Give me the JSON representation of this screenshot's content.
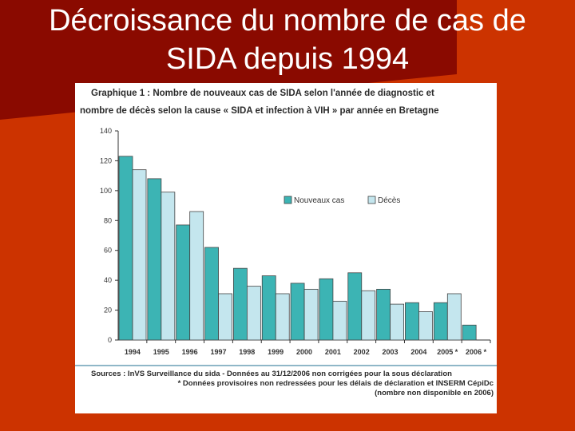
{
  "slide": {
    "title_line1": "Décroissance du nombre de cas de",
    "title_line2": "SIDA depuis 1994"
  },
  "colors": {
    "background": "#cc3300",
    "nouveaux_cas": "#3cb4b4",
    "deces": "#c4e6ee"
  },
  "chart_data": {
    "type": "bar",
    "title": "Graphique 1 : Nombre de nouveaux cas de SIDA selon l'année de diagnostic et nombre de décès selon la cause « SIDA et infection à VIH » par année en Bretagne",
    "title_line1": "Graphique 1 : Nombre de nouveaux cas de SIDA selon l'année de diagnostic et",
    "title_line2": "nombre de décès selon la cause « SIDA et infection à VIH » par année en Bretagne",
    "categories": [
      "1994",
      "1995",
      "1996",
      "1997",
      "1998",
      "1999",
      "2000",
      "2001",
      "2002",
      "2003",
      "2004",
      "2005 *",
      "2006 *"
    ],
    "series": [
      {
        "name": "Nouveaux cas",
        "values": [
          123,
          108,
          77,
          62,
          48,
          43,
          38,
          41,
          45,
          34,
          25,
          25,
          10
        ]
      },
      {
        "name": "Décès",
        "values": [
          114,
          99,
          86,
          31,
          36,
          31,
          34,
          26,
          33,
          24,
          19,
          31,
          null
        ]
      }
    ],
    "ylim": [
      0,
      140
    ],
    "yticks": [
      0,
      20,
      40,
      60,
      80,
      100,
      120,
      140
    ],
    "grid": false,
    "legend": "inside-center-right",
    "source_lines": [
      "Sources : InVS Surveillance du sida - Données au 31/12/2006 non corrigées pour la sous déclaration",
      "* Données provisoires non redressées pour les délais de déclaration et INSERM CépiDc",
      "(nombre non disponible en 2006)"
    ]
  }
}
